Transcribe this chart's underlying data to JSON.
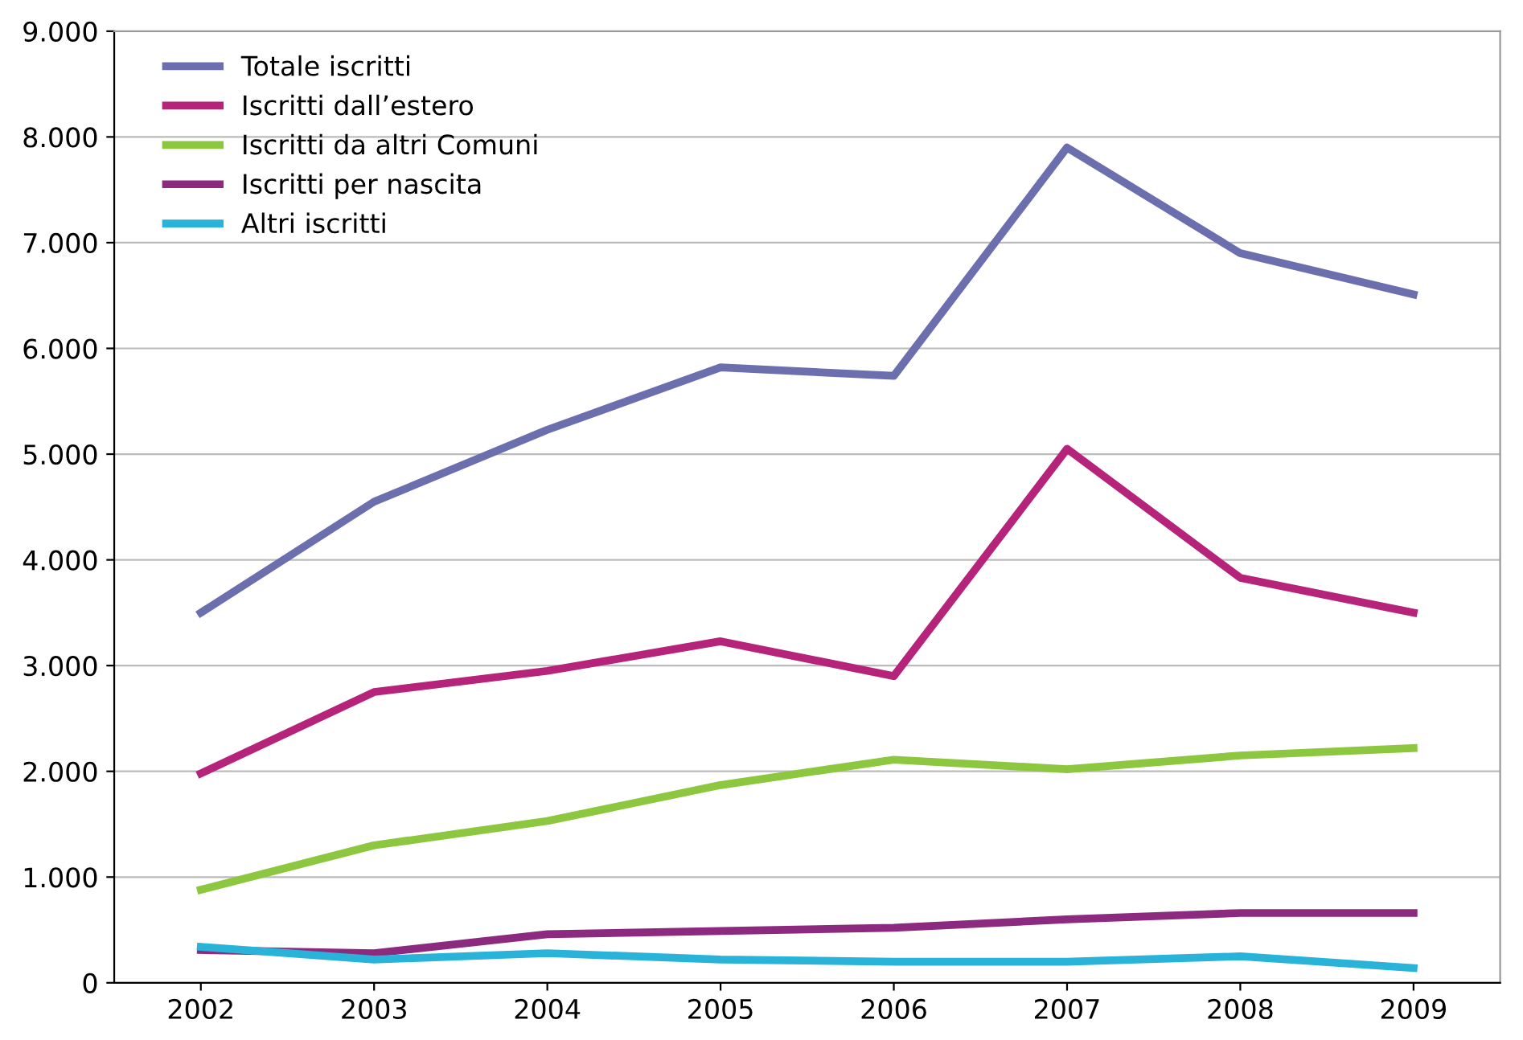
{
  "chart_data": {
    "type": "line",
    "categories": [
      "2002",
      "2003",
      "2004",
      "2005",
      "2006",
      "2007",
      "2008",
      "2009"
    ],
    "series": [
      {
        "name": "Totale iscritti",
        "color": "#6b6fae",
        "values": [
          3500,
          4550,
          5230,
          5820,
          5740,
          7900,
          6900,
          6510
        ]
      },
      {
        "name": "Iscritti dall’estero",
        "color": "#b5237a",
        "values": [
          1980,
          2750,
          2950,
          3230,
          2900,
          5050,
          3830,
          3500
        ]
      },
      {
        "name": "Iscritti da altri Comuni",
        "color": "#8dc63f",
        "values": [
          880,
          1300,
          1530,
          1870,
          2110,
          2020,
          2150,
          2220
        ]
      },
      {
        "name": "Iscritti per nascita",
        "color": "#8b2a7f",
        "values": [
          310,
          280,
          460,
          490,
          520,
          600,
          660,
          660
        ]
      },
      {
        "name": "Altri iscritti",
        "color": "#29b3d9",
        "values": [
          340,
          220,
          280,
          220,
          200,
          200,
          250,
          140
        ]
      }
    ],
    "ylim": [
      0,
      9000
    ],
    "yticks": [
      {
        "value": 0,
        "label": "0"
      },
      {
        "value": 1000,
        "label": "1.000"
      },
      {
        "value": 2000,
        "label": "2.000"
      },
      {
        "value": 3000,
        "label": "3.000"
      },
      {
        "value": 4000,
        "label": "4.000"
      },
      {
        "value": 5000,
        "label": "5.000"
      },
      {
        "value": 6000,
        "label": "6.000"
      },
      {
        "value": 7000,
        "label": "7.000"
      },
      {
        "value": 8000,
        "label": "8.000"
      },
      {
        "value": 9000,
        "label": "9.000"
      }
    ],
    "grid": "y",
    "legend": "top left",
    "marker": "none",
    "line_style": "solid"
  }
}
